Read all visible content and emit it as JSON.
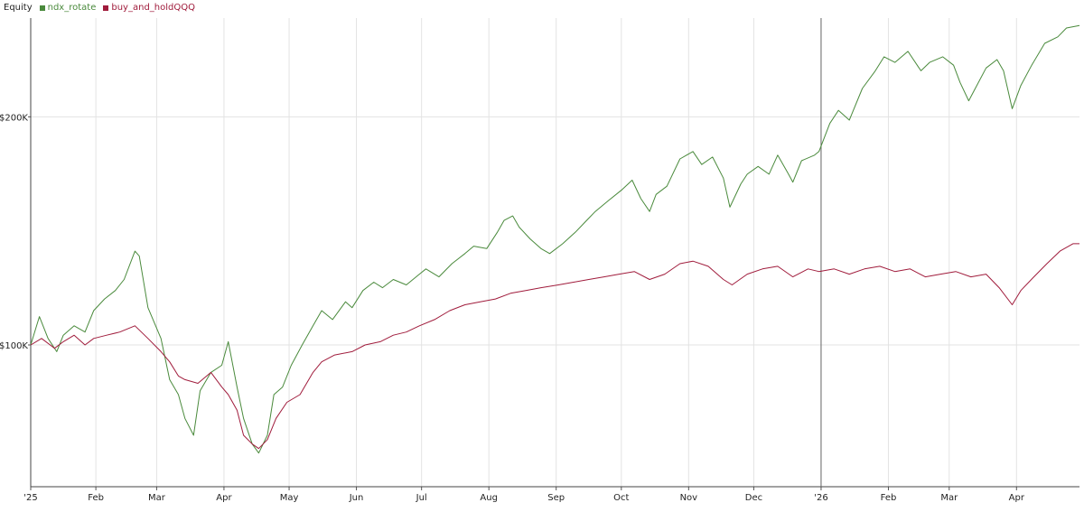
{
  "chart_data": {
    "type": "line",
    "title": "Equity",
    "legend_position": "top-left",
    "grid": true,
    "x_tick_labels": [
      "'25",
      "Feb",
      "Mar",
      "Apr",
      "May",
      "Jun",
      "Jul",
      "Aug",
      "Sep",
      "Oct",
      "Nov",
      "Dec",
      "'26",
      "Feb",
      "Mar",
      "Apr"
    ],
    "y_tick_labels": [
      "$100K",
      "$200K"
    ],
    "x_range": [
      "2025-01-02",
      "2026-04-30"
    ],
    "ylim": [
      65000,
      270000
    ],
    "y_scale": "log",
    "marker_date": "2026-01-01",
    "series": [
      {
        "name": "ndx_rotate",
        "color": "#4a8a3c",
        "points": [
          [
            "2025-01-02",
            100000
          ],
          [
            "2025-01-06",
            109000
          ],
          [
            "2025-01-10",
            102000
          ],
          [
            "2025-01-14",
            98000
          ],
          [
            "2025-01-17",
            103000
          ],
          [
            "2025-01-22",
            106000
          ],
          [
            "2025-01-27",
            104000
          ],
          [
            "2025-01-31",
            111000
          ],
          [
            "2025-02-05",
            115000
          ],
          [
            "2025-02-10",
            118000
          ],
          [
            "2025-02-14",
            122000
          ],
          [
            "2025-02-19",
            133000
          ],
          [
            "2025-02-21",
            131000
          ],
          [
            "2025-02-25",
            112000
          ],
          [
            "2025-03-03",
            102000
          ],
          [
            "2025-03-07",
            90000
          ],
          [
            "2025-03-11",
            86000
          ],
          [
            "2025-03-14",
            80000
          ],
          [
            "2025-03-18",
            76000
          ],
          [
            "2025-03-21",
            87000
          ],
          [
            "2025-03-26",
            92000
          ],
          [
            "2025-03-31",
            94000
          ],
          [
            "2025-04-03",
            101000
          ],
          [
            "2025-04-07",
            88000
          ],
          [
            "2025-04-10",
            80000
          ],
          [
            "2025-04-14",
            74000
          ],
          [
            "2025-04-17",
            72000
          ],
          [
            "2025-04-21",
            76000
          ],
          [
            "2025-04-24",
            86000
          ],
          [
            "2025-04-28",
            88000
          ],
          [
            "2025-05-02",
            94000
          ],
          [
            "2025-05-07",
            100000
          ],
          [
            "2025-05-12",
            106000
          ],
          [
            "2025-05-16",
            111000
          ],
          [
            "2025-05-21",
            108000
          ],
          [
            "2025-05-27",
            114000
          ],
          [
            "2025-05-30",
            112000
          ],
          [
            "2025-06-04",
            118000
          ],
          [
            "2025-06-09",
            121000
          ],
          [
            "2025-06-13",
            119000
          ],
          [
            "2025-06-18",
            122000
          ],
          [
            "2025-06-24",
            120000
          ],
          [
            "2025-06-30",
            124000
          ],
          [
            "2025-07-03",
            126000
          ],
          [
            "2025-07-09",
            123000
          ],
          [
            "2025-07-15",
            128000
          ],
          [
            "2025-07-21",
            132000
          ],
          [
            "2025-07-25",
            135000
          ],
          [
            "2025-07-31",
            134000
          ],
          [
            "2025-08-05",
            141000
          ],
          [
            "2025-08-08",
            146000
          ],
          [
            "2025-08-12",
            148000
          ],
          [
            "2025-08-15",
            143000
          ],
          [
            "2025-08-20",
            138000
          ],
          [
            "2025-08-25",
            134000
          ],
          [
            "2025-08-29",
            132000
          ],
          [
            "2025-09-04",
            136000
          ],
          [
            "2025-09-10",
            141000
          ],
          [
            "2025-09-15",
            146000
          ],
          [
            "2025-09-19",
            150000
          ],
          [
            "2025-09-25",
            155000
          ],
          [
            "2025-10-01",
            160000
          ],
          [
            "2025-10-06",
            165000
          ],
          [
            "2025-10-10",
            156000
          ],
          [
            "2025-10-14",
            150000
          ],
          [
            "2025-10-17",
            158000
          ],
          [
            "2025-10-22",
            162000
          ],
          [
            "2025-10-28",
            176000
          ],
          [
            "2025-11-03",
            180000
          ],
          [
            "2025-11-07",
            173000
          ],
          [
            "2025-11-12",
            177000
          ],
          [
            "2025-11-17",
            166000
          ],
          [
            "2025-11-20",
            152000
          ],
          [
            "2025-11-25",
            163000
          ],
          [
            "2025-11-28",
            168000
          ],
          [
            "2025-12-03",
            172000
          ],
          [
            "2025-12-08",
            168000
          ],
          [
            "2025-12-12",
            178000
          ],
          [
            "2025-12-17",
            168000
          ],
          [
            "2025-12-19",
            164000
          ],
          [
            "2025-12-23",
            175000
          ],
          [
            "2025-12-29",
            178000
          ],
          [
            "2025-12-31",
            180000
          ],
          [
            "2026-01-05",
            196000
          ],
          [
            "2026-01-09",
            204000
          ],
          [
            "2026-01-14",
            198000
          ],
          [
            "2026-01-20",
            218000
          ],
          [
            "2026-01-26",
            230000
          ],
          [
            "2026-01-30",
            240000
          ],
          [
            "2026-02-04",
            236000
          ],
          [
            "2026-02-10",
            244000
          ],
          [
            "2026-02-16",
            230000
          ],
          [
            "2026-02-20",
            236000
          ],
          [
            "2026-02-26",
            240000
          ],
          [
            "2026-03-03",
            234000
          ],
          [
            "2026-03-06",
            222000
          ],
          [
            "2026-03-10",
            210000
          ],
          [
            "2026-03-13",
            218000
          ],
          [
            "2026-03-18",
            232000
          ],
          [
            "2026-03-23",
            238000
          ],
          [
            "2026-03-26",
            230000
          ],
          [
            "2026-03-30",
            205000
          ],
          [
            "2026-04-03",
            220000
          ],
          [
            "2026-04-08",
            234000
          ],
          [
            "2026-04-14",
            250000
          ],
          [
            "2026-04-20",
            255000
          ],
          [
            "2026-04-24",
            262000
          ],
          [
            "2026-04-30",
            264000
          ]
        ]
      },
      {
        "name": "buy_and_holdQQQ",
        "color": "#a01c3c",
        "points": [
          [
            "2025-01-02",
            100000
          ],
          [
            "2025-01-07",
            102000
          ],
          [
            "2025-01-13",
            99000
          ],
          [
            "2025-01-17",
            101000
          ],
          [
            "2025-01-22",
            103000
          ],
          [
            "2025-01-27",
            100000
          ],
          [
            "2025-01-31",
            102000
          ],
          [
            "2025-02-06",
            103000
          ],
          [
            "2025-02-12",
            104000
          ],
          [
            "2025-02-19",
            106000
          ],
          [
            "2025-02-25",
            102000
          ],
          [
            "2025-03-03",
            98000
          ],
          [
            "2025-03-07",
            95000
          ],
          [
            "2025-03-11",
            91000
          ],
          [
            "2025-03-14",
            90000
          ],
          [
            "2025-03-20",
            89000
          ],
          [
            "2025-03-26",
            92000
          ],
          [
            "2025-03-31",
            88000
          ],
          [
            "2025-04-03",
            86000
          ],
          [
            "2025-04-07",
            82000
          ],
          [
            "2025-04-10",
            76000
          ],
          [
            "2025-04-14",
            74000
          ],
          [
            "2025-04-17",
            73000
          ],
          [
            "2025-04-21",
            75000
          ],
          [
            "2025-04-25",
            80000
          ],
          [
            "2025-04-30",
            84000
          ],
          [
            "2025-05-06",
            86000
          ],
          [
            "2025-05-12",
            92000
          ],
          [
            "2025-05-16",
            95000
          ],
          [
            "2025-05-22",
            97000
          ],
          [
            "2025-05-30",
            98000
          ],
          [
            "2025-06-05",
            100000
          ],
          [
            "2025-06-12",
            101000
          ],
          [
            "2025-06-18",
            103000
          ],
          [
            "2025-06-24",
            104000
          ],
          [
            "2025-06-30",
            106000
          ],
          [
            "2025-07-07",
            108000
          ],
          [
            "2025-07-14",
            111000
          ],
          [
            "2025-07-21",
            113000
          ],
          [
            "2025-07-28",
            114000
          ],
          [
            "2025-08-04",
            115000
          ],
          [
            "2025-08-11",
            117000
          ],
          [
            "2025-08-18",
            118000
          ],
          [
            "2025-08-25",
            119000
          ],
          [
            "2025-09-02",
            120000
          ],
          [
            "2025-09-09",
            121000
          ],
          [
            "2025-09-16",
            122000
          ],
          [
            "2025-09-23",
            123000
          ],
          [
            "2025-09-30",
            124000
          ],
          [
            "2025-10-07",
            125000
          ],
          [
            "2025-10-14",
            122000
          ],
          [
            "2025-10-21",
            124000
          ],
          [
            "2025-10-28",
            128000
          ],
          [
            "2025-11-03",
            129000
          ],
          [
            "2025-11-10",
            127000
          ],
          [
            "2025-11-17",
            122000
          ],
          [
            "2025-11-21",
            120000
          ],
          [
            "2025-11-28",
            124000
          ],
          [
            "2025-12-05",
            126000
          ],
          [
            "2025-12-12",
            127000
          ],
          [
            "2025-12-19",
            123000
          ],
          [
            "2025-12-26",
            126000
          ],
          [
            "2025-12-31",
            125000
          ],
          [
            "2026-01-07",
            126000
          ],
          [
            "2026-01-14",
            124000
          ],
          [
            "2026-01-21",
            126000
          ],
          [
            "2026-01-28",
            127000
          ],
          [
            "2026-02-04",
            125000
          ],
          [
            "2026-02-11",
            126000
          ],
          [
            "2026-02-18",
            123000
          ],
          [
            "2026-02-25",
            124000
          ],
          [
            "2026-03-04",
            125000
          ],
          [
            "2026-03-11",
            123000
          ],
          [
            "2026-03-18",
            124000
          ],
          [
            "2026-03-24",
            119000
          ],
          [
            "2026-03-30",
            113000
          ],
          [
            "2026-04-03",
            118000
          ],
          [
            "2026-04-09",
            123000
          ],
          [
            "2026-04-15",
            128000
          ],
          [
            "2026-04-21",
            133000
          ],
          [
            "2026-04-27",
            136000
          ],
          [
            "2026-04-30",
            136000
          ]
        ]
      }
    ]
  }
}
